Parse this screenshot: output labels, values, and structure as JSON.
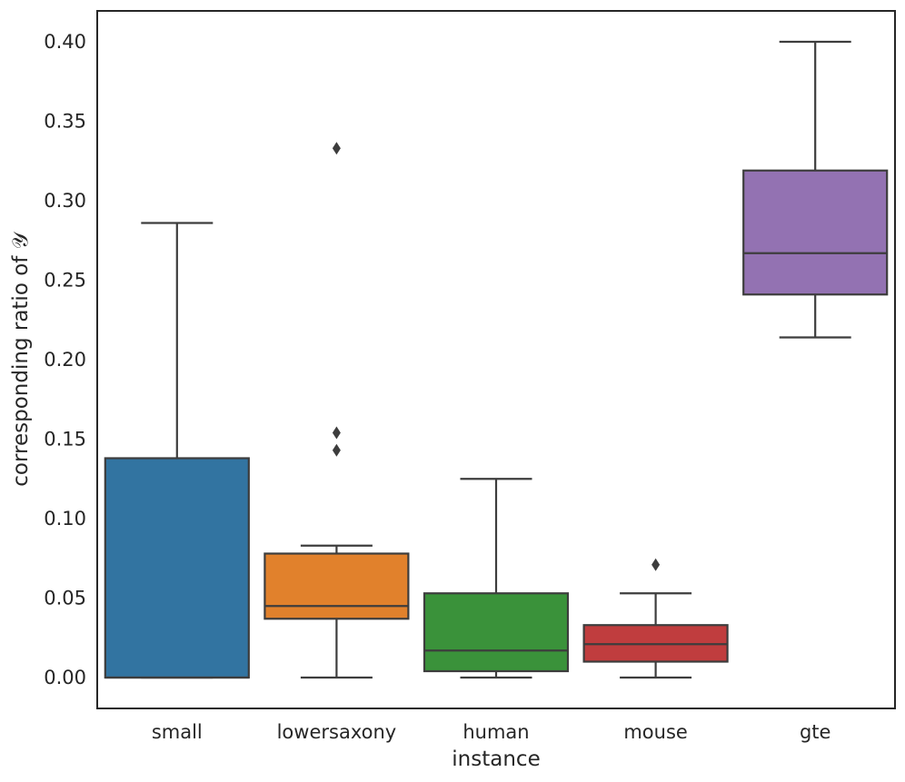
{
  "chart_data": {
    "type": "box",
    "title": "",
    "xlabel": "instance",
    "ylabel": "corresponding ratio of 𝒴",
    "ylim": [
      -0.02,
      0.42
    ],
    "yticks": [
      0.0,
      0.05,
      0.1,
      0.15,
      0.2,
      0.25,
      0.3,
      0.35,
      0.4
    ],
    "ytick_labels": [
      "0.00",
      "0.05",
      "0.10",
      "0.15",
      "0.20",
      "0.25",
      "0.30",
      "0.35",
      "0.40"
    ],
    "grid": false,
    "categories": [
      "small",
      "lowersaxony",
      "human",
      "mouse",
      "gte"
    ],
    "boxes": [
      {
        "name": "small",
        "color": "#3274a1",
        "whisker_low": 0.0,
        "q1": 0.0,
        "median": 0.0,
        "q3": 0.138,
        "whisker_high": 0.286,
        "outliers": []
      },
      {
        "name": "lowersaxony",
        "color": "#e1812c",
        "whisker_low": 0.0,
        "q1": 0.037,
        "median": 0.045,
        "q3": 0.078,
        "whisker_high": 0.083,
        "outliers": [
          0.333,
          0.154,
          0.143
        ]
      },
      {
        "name": "human",
        "color": "#3a923a",
        "whisker_low": 0.0,
        "q1": 0.004,
        "median": 0.017,
        "q3": 0.053,
        "whisker_high": 0.125,
        "outliers": []
      },
      {
        "name": "mouse",
        "color": "#c03d3e",
        "whisker_low": 0.0,
        "q1": 0.01,
        "median": 0.021,
        "q3": 0.033,
        "whisker_high": 0.053,
        "outliers": [
          0.071
        ]
      },
      {
        "name": "gte",
        "color": "#9372b2",
        "whisker_low": 0.214,
        "q1": 0.241,
        "median": 0.267,
        "q3": 0.319,
        "whisker_high": 0.4,
        "outliers": []
      }
    ],
    "line_color": "#3d3d3d"
  }
}
